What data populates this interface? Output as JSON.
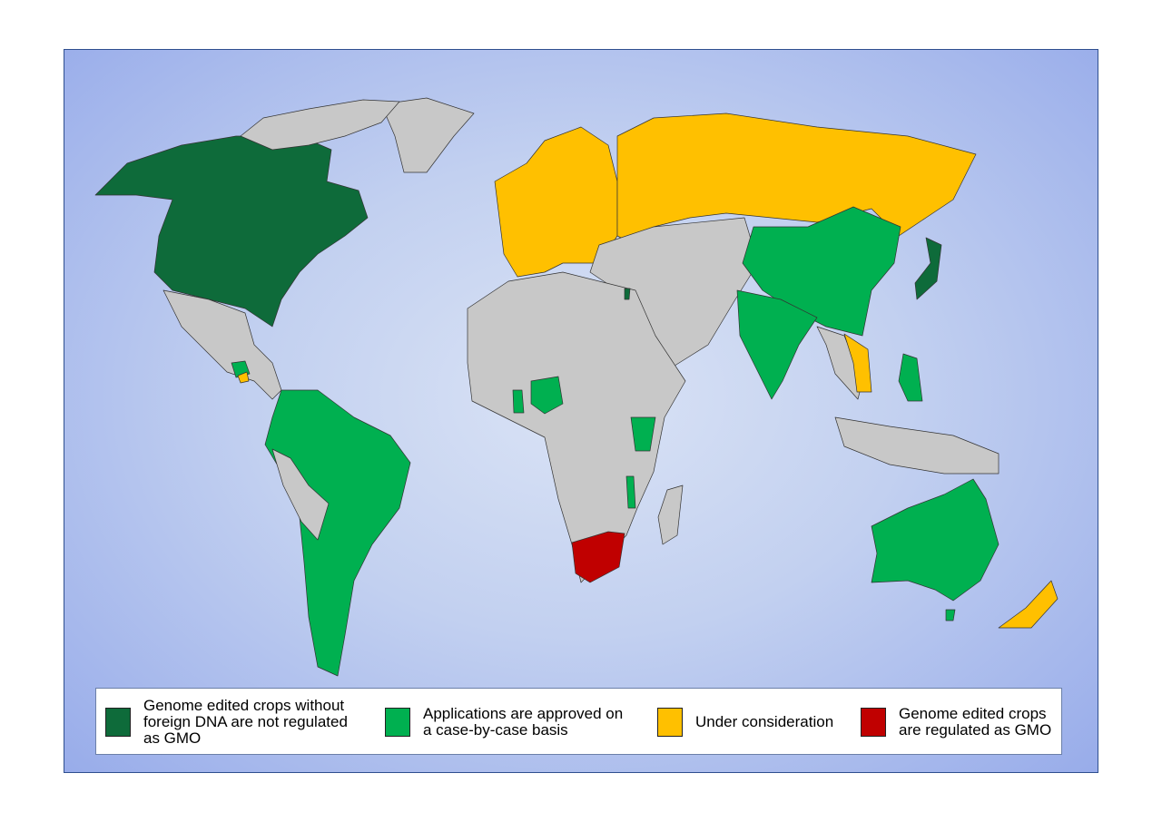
{
  "colors": {
    "not_regulated": "#0e6b3a",
    "case_by_case": "#00b050",
    "under_consideration": "#ffc000",
    "regulated_gmo": "#c00000",
    "no_data": "#c8c8c8"
  },
  "legend": [
    {
      "category": "not_regulated",
      "label": "Genome edited crops without\nforeign DNA are not regulated\nas GMO"
    },
    {
      "category": "case_by_case",
      "label": "Applications are approved on\na case-by-case basis"
    },
    {
      "category": "under_consideration",
      "label": "Under consideration"
    },
    {
      "category": "regulated_gmo",
      "label": "Genome edited crops\nare regulated as GMO"
    }
  ],
  "regions": [
    {
      "id": "greenland",
      "category": "no_data"
    },
    {
      "id": "canada-usa",
      "category": "not_regulated"
    },
    {
      "id": "mexico-central-america",
      "category": "no_data"
    },
    {
      "id": "guatemala",
      "category": "case_by_case"
    },
    {
      "id": "honduras",
      "category": "under_consideration"
    },
    {
      "id": "south-america",
      "category": "case_by_case"
    },
    {
      "id": "peru-bolivia-venezuela",
      "category": "no_data"
    },
    {
      "id": "europe",
      "category": "under_consideration"
    },
    {
      "id": "russia",
      "category": "under_consideration"
    },
    {
      "id": "middle-east-central-asia",
      "category": "no_data"
    },
    {
      "id": "china",
      "category": "case_by_case"
    },
    {
      "id": "india",
      "category": "case_by_case"
    },
    {
      "id": "southeast-asia",
      "category": "no_data"
    },
    {
      "id": "vietnam",
      "category": "under_consideration"
    },
    {
      "id": "japan",
      "category": "not_regulated"
    },
    {
      "id": "philippines",
      "category": "case_by_case"
    },
    {
      "id": "indonesia",
      "category": "no_data"
    },
    {
      "id": "africa",
      "category": "no_data"
    },
    {
      "id": "south-africa",
      "category": "regulated_gmo"
    },
    {
      "id": "nigeria",
      "category": "case_by_case"
    },
    {
      "id": "ghana",
      "category": "case_by_case"
    },
    {
      "id": "kenya",
      "category": "case_by_case"
    },
    {
      "id": "malawi",
      "category": "case_by_case"
    },
    {
      "id": "israel",
      "category": "not_regulated"
    },
    {
      "id": "madagascar",
      "category": "no_data"
    },
    {
      "id": "australia",
      "category": "case_by_case"
    },
    {
      "id": "tasmania",
      "category": "case_by_case"
    },
    {
      "id": "new-zealand",
      "category": "under_consideration"
    },
    {
      "id": "arctic-islands",
      "category": "no_data"
    }
  ]
}
